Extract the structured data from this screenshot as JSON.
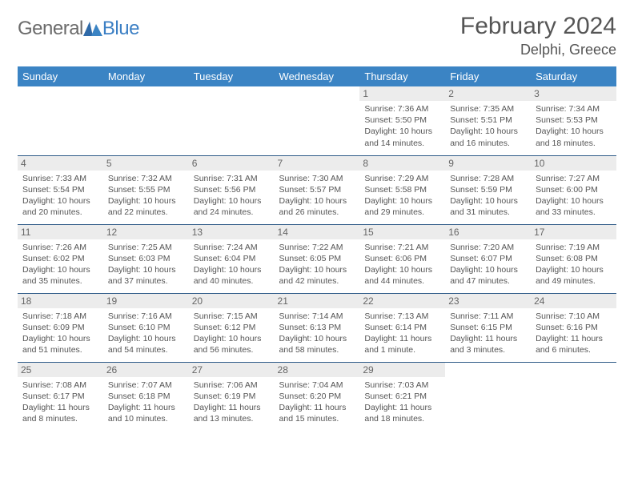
{
  "brand": {
    "text1": "General",
    "text2": "Blue"
  },
  "title": "February 2024",
  "location": "Delphi, Greece",
  "colors": {
    "header_bg": "#3b84c4",
    "header_text": "#ffffff",
    "grid_border": "#2f5b88",
    "daynum_bg": "#ececec",
    "text": "#555555",
    "logo_gray": "#6b6b6b",
    "logo_blue": "#3b7fc4",
    "page_bg": "#ffffff"
  },
  "day_headers": [
    "Sunday",
    "Monday",
    "Tuesday",
    "Wednesday",
    "Thursday",
    "Friday",
    "Saturday"
  ],
  "first_day_index": 4,
  "days_in_month": 29,
  "cell_font_size_pt": 8,
  "daynum_font_size_pt": 9,
  "header_font_size_pt": 10,
  "title_font_size_pt": 22,
  "location_font_size_pt": 13,
  "days": [
    {
      "n": 1,
      "sunrise": "7:36 AM",
      "sunset": "5:50 PM",
      "daylight": "10 hours and 14 minutes."
    },
    {
      "n": 2,
      "sunrise": "7:35 AM",
      "sunset": "5:51 PM",
      "daylight": "10 hours and 16 minutes."
    },
    {
      "n": 3,
      "sunrise": "7:34 AM",
      "sunset": "5:53 PM",
      "daylight": "10 hours and 18 minutes."
    },
    {
      "n": 4,
      "sunrise": "7:33 AM",
      "sunset": "5:54 PM",
      "daylight": "10 hours and 20 minutes."
    },
    {
      "n": 5,
      "sunrise": "7:32 AM",
      "sunset": "5:55 PM",
      "daylight": "10 hours and 22 minutes."
    },
    {
      "n": 6,
      "sunrise": "7:31 AM",
      "sunset": "5:56 PM",
      "daylight": "10 hours and 24 minutes."
    },
    {
      "n": 7,
      "sunrise": "7:30 AM",
      "sunset": "5:57 PM",
      "daylight": "10 hours and 26 minutes."
    },
    {
      "n": 8,
      "sunrise": "7:29 AM",
      "sunset": "5:58 PM",
      "daylight": "10 hours and 29 minutes."
    },
    {
      "n": 9,
      "sunrise": "7:28 AM",
      "sunset": "5:59 PM",
      "daylight": "10 hours and 31 minutes."
    },
    {
      "n": 10,
      "sunrise": "7:27 AM",
      "sunset": "6:00 PM",
      "daylight": "10 hours and 33 minutes."
    },
    {
      "n": 11,
      "sunrise": "7:26 AM",
      "sunset": "6:02 PM",
      "daylight": "10 hours and 35 minutes."
    },
    {
      "n": 12,
      "sunrise": "7:25 AM",
      "sunset": "6:03 PM",
      "daylight": "10 hours and 37 minutes."
    },
    {
      "n": 13,
      "sunrise": "7:24 AM",
      "sunset": "6:04 PM",
      "daylight": "10 hours and 40 minutes."
    },
    {
      "n": 14,
      "sunrise": "7:22 AM",
      "sunset": "6:05 PM",
      "daylight": "10 hours and 42 minutes."
    },
    {
      "n": 15,
      "sunrise": "7:21 AM",
      "sunset": "6:06 PM",
      "daylight": "10 hours and 44 minutes."
    },
    {
      "n": 16,
      "sunrise": "7:20 AM",
      "sunset": "6:07 PM",
      "daylight": "10 hours and 47 minutes."
    },
    {
      "n": 17,
      "sunrise": "7:19 AM",
      "sunset": "6:08 PM",
      "daylight": "10 hours and 49 minutes."
    },
    {
      "n": 18,
      "sunrise": "7:18 AM",
      "sunset": "6:09 PM",
      "daylight": "10 hours and 51 minutes."
    },
    {
      "n": 19,
      "sunrise": "7:16 AM",
      "sunset": "6:10 PM",
      "daylight": "10 hours and 54 minutes."
    },
    {
      "n": 20,
      "sunrise": "7:15 AM",
      "sunset": "6:12 PM",
      "daylight": "10 hours and 56 minutes."
    },
    {
      "n": 21,
      "sunrise": "7:14 AM",
      "sunset": "6:13 PM",
      "daylight": "10 hours and 58 minutes."
    },
    {
      "n": 22,
      "sunrise": "7:13 AM",
      "sunset": "6:14 PM",
      "daylight": "11 hours and 1 minute."
    },
    {
      "n": 23,
      "sunrise": "7:11 AM",
      "sunset": "6:15 PM",
      "daylight": "11 hours and 3 minutes."
    },
    {
      "n": 24,
      "sunrise": "7:10 AM",
      "sunset": "6:16 PM",
      "daylight": "11 hours and 6 minutes."
    },
    {
      "n": 25,
      "sunrise": "7:08 AM",
      "sunset": "6:17 PM",
      "daylight": "11 hours and 8 minutes."
    },
    {
      "n": 26,
      "sunrise": "7:07 AM",
      "sunset": "6:18 PM",
      "daylight": "11 hours and 10 minutes."
    },
    {
      "n": 27,
      "sunrise": "7:06 AM",
      "sunset": "6:19 PM",
      "daylight": "11 hours and 13 minutes."
    },
    {
      "n": 28,
      "sunrise": "7:04 AM",
      "sunset": "6:20 PM",
      "daylight": "11 hours and 15 minutes."
    },
    {
      "n": 29,
      "sunrise": "7:03 AM",
      "sunset": "6:21 PM",
      "daylight": "11 hours and 18 minutes."
    }
  ],
  "labels": {
    "sunrise": "Sunrise:",
    "sunset": "Sunset:",
    "daylight": "Daylight:"
  }
}
